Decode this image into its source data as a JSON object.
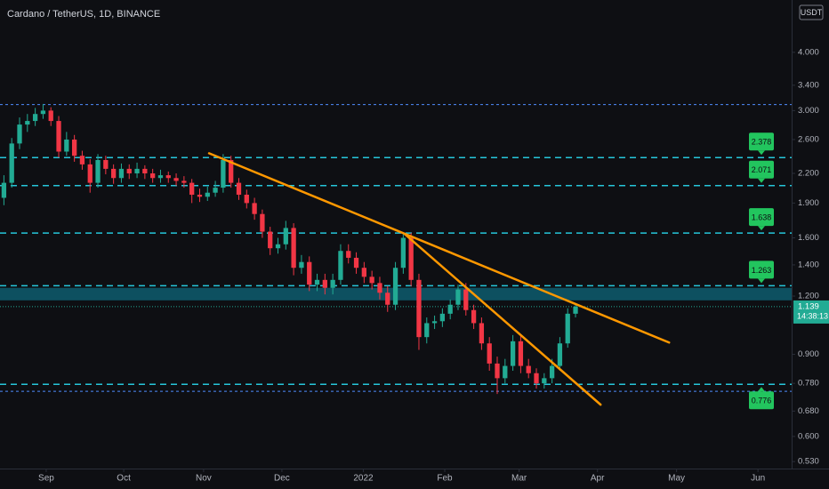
{
  "chart_data": {
    "type": "candlestick",
    "title": "Cardano / TetherUS, 1D, BINANCE",
    "currency": "USDT",
    "up_color": "#22ab94",
    "down_color": "#f23645",
    "level_color": "#26c6da",
    "ref_color": "#4f8cff",
    "zone_color": "#0d5c6e",
    "trend_color": "#ff9800",
    "label_color": "#22c55e",
    "log_scale": true,
    "xlim": [
      -0.5,
      100.6
    ],
    "xticks": [
      {
        "value": 5.4,
        "label": "Sep"
      },
      {
        "value": 15.3,
        "label": "Oct"
      },
      {
        "value": 25.5,
        "label": "Nov"
      },
      {
        "value": 35.5,
        "label": "Dec"
      },
      {
        "value": 45.9,
        "label": "2022"
      },
      {
        "value": 56.3,
        "label": "Feb"
      },
      {
        "value": 65.8,
        "label": "Mar"
      },
      {
        "value": 75.8,
        "label": "Apr"
      },
      {
        "value": 85.9,
        "label": "May"
      },
      {
        "value": 96.3,
        "label": "Jun"
      }
    ],
    "ylim": [
      0.512,
      5.18
    ],
    "yticks": [
      {
        "value": 4,
        "label": "4.000"
      },
      {
        "value": 3.4,
        "label": "3.400"
      },
      {
        "value": 3,
        "label": "3.000"
      },
      {
        "value": 2.6,
        "label": "2.600"
      },
      {
        "value": 2.2,
        "label": "2.200"
      },
      {
        "value": 1.9,
        "label": "1.900"
      },
      {
        "value": 1.6,
        "label": "1.600"
      },
      {
        "value": 1.4,
        "label": "1.400"
      },
      {
        "value": 1.2,
        "label": "1.200"
      },
      {
        "value": 0.9,
        "label": "0.900"
      },
      {
        "value": 0.78,
        "label": "0.780"
      },
      {
        "value": 0.68,
        "label": "0.680"
      },
      {
        "value": 0.6,
        "label": "0.600"
      },
      {
        "value": 0.53,
        "label": "0.530"
      }
    ],
    "candles": [
      [
        1.95,
        2.18,
        1.88,
        2.1
      ],
      [
        2.1,
        2.62,
        2.05,
        2.55
      ],
      [
        2.55,
        2.9,
        2.48,
        2.8
      ],
      [
        2.8,
        2.95,
        2.7,
        2.85
      ],
      [
        2.85,
        3.04,
        2.78,
        2.95
      ],
      [
        2.95,
        3.1,
        2.88,
        3.0
      ],
      [
        3.0,
        3.05,
        2.78,
        2.85
      ],
      [
        2.85,
        2.92,
        2.38,
        2.45
      ],
      [
        2.45,
        2.7,
        2.4,
        2.6
      ],
      [
        2.6,
        2.66,
        2.33,
        2.4
      ],
      [
        2.4,
        2.46,
        2.24,
        2.3
      ],
      [
        2.3,
        2.36,
        2.0,
        2.1
      ],
      [
        2.1,
        2.42,
        2.05,
        2.35
      ],
      [
        2.35,
        2.4,
        2.19,
        2.25
      ],
      [
        2.25,
        2.3,
        2.09,
        2.15
      ],
      [
        2.15,
        2.31,
        2.1,
        2.25
      ],
      [
        2.25,
        2.3,
        2.14,
        2.2
      ],
      [
        2.2,
        2.32,
        2.15,
        2.25
      ],
      [
        2.25,
        2.29,
        2.14,
        2.2
      ],
      [
        2.2,
        2.25,
        2.1,
        2.15
      ],
      [
        2.15,
        2.24,
        2.1,
        2.18
      ],
      [
        2.18,
        2.22,
        2.1,
        2.15
      ],
      [
        2.15,
        2.2,
        2.07,
        2.12
      ],
      [
        2.12,
        2.17,
        2.05,
        2.1
      ],
      [
        2.1,
        2.14,
        1.9,
        1.98
      ],
      [
        1.98,
        2.04,
        1.91,
        1.96
      ],
      [
        1.96,
        2.06,
        1.92,
        2.0
      ],
      [
        2.0,
        2.12,
        1.96,
        2.05
      ],
      [
        2.05,
        2.42,
        2.0,
        2.35
      ],
      [
        2.35,
        2.4,
        2.05,
        2.1
      ],
      [
        2.1,
        2.15,
        1.93,
        1.98
      ],
      [
        1.98,
        2.03,
        1.85,
        1.9
      ],
      [
        1.9,
        1.95,
        1.75,
        1.8
      ],
      [
        1.8,
        1.84,
        1.6,
        1.65
      ],
      [
        1.65,
        1.69,
        1.47,
        1.52
      ],
      [
        1.52,
        1.6,
        1.48,
        1.55
      ],
      [
        1.55,
        1.74,
        1.51,
        1.68
      ],
      [
        1.68,
        1.72,
        1.33,
        1.38
      ],
      [
        1.38,
        1.47,
        1.34,
        1.42
      ],
      [
        1.42,
        1.46,
        1.23,
        1.27
      ],
      [
        1.27,
        1.34,
        1.23,
        1.3
      ],
      [
        1.3,
        1.34,
        1.21,
        1.25
      ],
      [
        1.25,
        1.34,
        1.21,
        1.3
      ],
      [
        1.3,
        1.55,
        1.27,
        1.5
      ],
      [
        1.5,
        1.55,
        1.41,
        1.45
      ],
      [
        1.45,
        1.49,
        1.34,
        1.38
      ],
      [
        1.38,
        1.42,
        1.28,
        1.32
      ],
      [
        1.32,
        1.36,
        1.24,
        1.28
      ],
      [
        1.28,
        1.32,
        1.18,
        1.22
      ],
      [
        1.22,
        1.26,
        1.11,
        1.15
      ],
      [
        1.15,
        1.42,
        1.12,
        1.38
      ],
      [
        1.38,
        1.63,
        1.34,
        1.6
      ],
      [
        1.6,
        1.64,
        1.26,
        1.3
      ],
      [
        1.3,
        1.34,
        0.92,
        0.98
      ],
      [
        0.98,
        1.08,
        0.95,
        1.05
      ],
      [
        1.05,
        1.09,
        1.02,
        1.06
      ],
      [
        1.06,
        1.13,
        1.03,
        1.1
      ],
      [
        1.1,
        1.18,
        1.07,
        1.15
      ],
      [
        1.15,
        1.27,
        1.12,
        1.24
      ],
      [
        1.24,
        1.28,
        1.09,
        1.12
      ],
      [
        1.12,
        1.15,
        1.02,
        1.05
      ],
      [
        1.05,
        1.08,
        0.92,
        0.95
      ],
      [
        0.95,
        0.98,
        0.83,
        0.86
      ],
      [
        0.86,
        0.89,
        0.74,
        0.8
      ],
      [
        0.8,
        0.88,
        0.78,
        0.85
      ],
      [
        0.85,
        0.99,
        0.83,
        0.96
      ],
      [
        0.96,
        0.99,
        0.82,
        0.85
      ],
      [
        0.85,
        0.88,
        0.8,
        0.82
      ],
      [
        0.82,
        0.84,
        0.76,
        0.78
      ],
      [
        0.78,
        0.82,
        0.76,
        0.8
      ],
      [
        0.8,
        0.88,
        0.78,
        0.85
      ],
      [
        0.85,
        0.98,
        0.83,
        0.95
      ],
      [
        0.95,
        1.13,
        0.93,
        1.1
      ],
      [
        1.1,
        1.15,
        1.08,
        1.139
      ]
    ],
    "levels": [
      2.378,
      2.071,
      1.638,
      1.263,
      0.776
    ],
    "ref_lines": [
      3.09,
      0.75
    ],
    "zone": [
      1.175,
      1.25
    ],
    "current_price": 1.139,
    "countdown": "14:38:13",
    "trend_lines": [
      [
        [
          26.2,
          2.43
        ],
        [
          84.95,
          0.954
        ]
      ],
      [
        [
          51.2,
          1.63
        ],
        [
          76.2,
          0.702
        ]
      ]
    ]
  }
}
